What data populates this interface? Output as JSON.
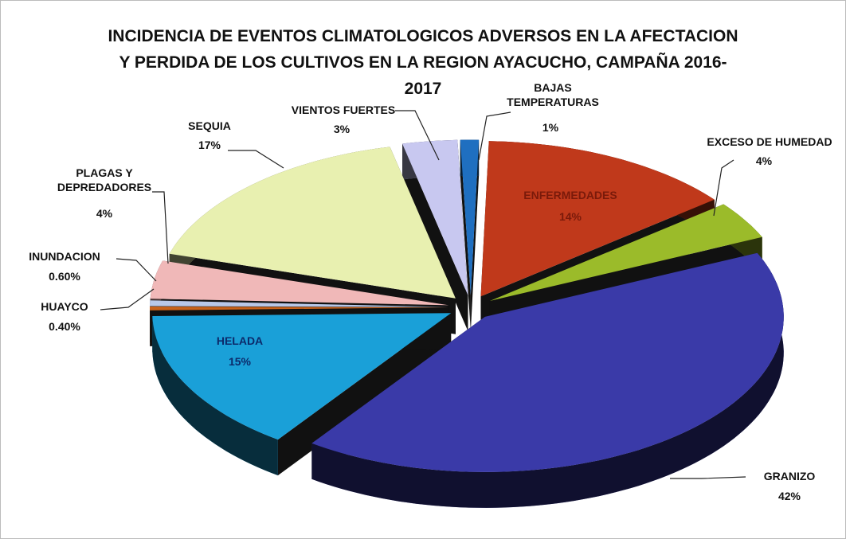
{
  "chart_data": {
    "type": "pie",
    "title": "INCIDENCIA DE EVENTOS CLIMATOLOGICOS ADVERSOS EN LA AFECTACION Y PERDIDA DE LOS CULTIVOS EN LA REGION AYACUCHO, CAMPAÑA 2016-2017",
    "categories": [
      "BAJAS TEMPERATURAS",
      "ENFERMEDADES",
      "EXCESO DE HUMEDAD",
      "GRANIZO",
      "HELADA",
      "HUAYCO",
      "INUNDACION",
      "PLAGAS Y DEPREDADORES",
      "SEQUIA",
      "VIENTOS FUERTES"
    ],
    "values": [
      1,
      14,
      4,
      42,
      15,
      0.4,
      0.6,
      4,
      17,
      3
    ],
    "value_labels": [
      "1%",
      "14%",
      "4%",
      "42%",
      "15%",
      "0.40%",
      "0.60%",
      "4%",
      "17%",
      "3%"
    ],
    "colors": [
      "#1f6fc0",
      "#c0391b",
      "#9bbb2a",
      "#3a3aa8",
      "#1aa0d8",
      "#c8621a",
      "#b8c8e8",
      "#f0b8b8",
      "#e8f0b0",
      "#c8c8f0"
    ]
  }
}
